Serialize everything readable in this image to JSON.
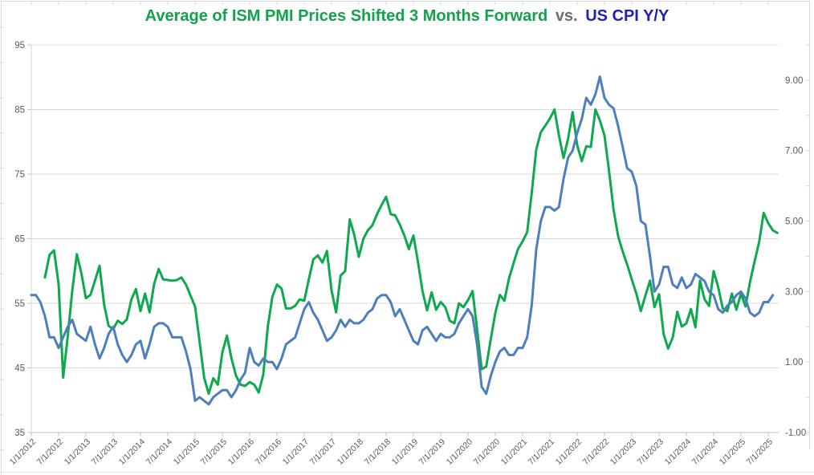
{
  "title": {
    "part1": "Average of ISM PMI Prices Shifted 3 Months Forward",
    "separator": "vs.",
    "part2": "US CPI Y/Y"
  },
  "colors": {
    "title_part1": "#12A24B",
    "title_separator": "#6E6E6E",
    "title_part2": "#1F23AE",
    "series_ism": "#0EA84F",
    "series_cpi": "#4D7EBE",
    "axis_text": "#595959",
    "gridline": "#D9D9D9",
    "tick_line": "#BFBFBF",
    "frame_line": "#D9D9D9"
  },
  "chart_data": {
    "type": "line",
    "title": "Average of ISM PMI Prices Shifted 3 Months Forward vs. US CPI Y/Y",
    "grid": "horizontal-only",
    "legend": "none",
    "x_start": "1/1/2012",
    "x_tick_interval_months": 6,
    "x_tick_labels": [
      "1/1/2012",
      "7/1/2012",
      "1/1/2013",
      "7/1/2013",
      "1/1/2014",
      "7/1/2014",
      "1/1/2015",
      "7/1/2015",
      "1/1/2016",
      "7/1/2016",
      "1/1/2017",
      "7/1/2017",
      "1/1/2018",
      "7/1/2018",
      "1/1/2019",
      "7/1/2019",
      "1/1/2020",
      "7/1/2020",
      "1/1/2021",
      "7/1/2021",
      "1/1/2022",
      "7/1/2022",
      "1/1/2023",
      "7/1/2023",
      "1/1/2024",
      "7/1/2024",
      "1/1/2025",
      "7/1/2025"
    ],
    "left_axis": {
      "labels": [
        "95",
        "85",
        "75",
        "65",
        "55",
        "45",
        "35"
      ],
      "min": 35,
      "max": 95
    },
    "right_axis": {
      "labels": [
        "9.00",
        "7.00",
        "5.00",
        "3.00",
        "1.00",
        "-1.00"
      ],
      "min": -1,
      "max": 10
    },
    "series": [
      {
        "name": "Average of ISM PMI Prices Shifted 3 Months Forward",
        "axis": "left",
        "color_key": "series_ism",
        "start_month_index": 3,
        "start_label": "4/1/2012",
        "values": [
          59.0,
          62.5,
          63.2,
          58.0,
          43.5,
          49.8,
          56.9,
          62.6,
          59.7,
          55.8,
          56.3,
          58.5,
          60.8,
          54.8,
          51.5,
          51.0,
          52.3,
          51.8,
          52.5,
          55.6,
          57.2,
          53.8,
          56.5,
          53.6,
          58.0,
          60.3,
          58.7,
          58.6,
          58.5,
          58.6,
          59.0,
          57.9,
          56.2,
          54.5,
          49.0,
          43.5,
          41.0,
          43.4,
          42.4,
          47.4,
          50.0,
          46.5,
          43.8,
          42.4,
          42.2,
          42.8,
          42.4,
          41.2,
          44.0,
          51.5,
          56.0,
          57.9,
          57.3,
          54.2,
          54.2,
          54.6,
          55.6,
          55.4,
          58.7,
          61.8,
          62.4,
          61.3,
          63.1,
          57.0,
          53.6,
          59.3,
          60.0,
          68.0,
          65.6,
          62.2,
          65.0,
          66.3,
          67.1,
          68.8,
          70.2,
          71.5,
          68.8,
          68.6,
          67.2,
          65.5,
          63.4,
          65.5,
          61.4,
          56.9,
          53.9,
          56.7,
          54.0,
          55.2,
          54.4,
          52.3,
          51.9,
          55.0,
          54.4,
          55.5,
          56.9,
          51.0,
          44.8,
          45.2,
          49.4,
          53.5,
          56.3,
          55.4,
          58.8,
          61.2,
          63.4,
          64.6,
          66.0,
          72.0,
          78.8,
          81.5,
          82.5,
          83.6,
          85.0,
          81.0,
          77.5,
          80.5,
          84.6,
          79.5,
          77.0,
          79.3,
          79.2,
          85.0,
          83.3,
          81.0,
          75.5,
          69.5,
          65.4,
          63.0,
          61.0,
          58.7,
          56.5,
          53.8,
          56.2,
          58.5,
          54.4,
          56.4,
          50.2,
          48.0,
          49.7,
          53.7,
          51.4,
          51.9,
          54.1,
          51.3,
          58.5,
          55.6,
          54.6,
          60.0,
          57.5,
          54.2,
          53.8,
          56.5,
          54.0,
          56.5,
          54.5,
          58.3,
          61.5,
          64.5,
          69.0,
          67.4,
          66.3,
          65.9
        ]
      },
      {
        "name": "US CPI Y/Y",
        "axis": "right",
        "color_key": "series_cpi",
        "start_month_index": 0,
        "start_label": "1/1/2012",
        "values": [
          2.9,
          2.9,
          2.7,
          2.3,
          1.7,
          1.7,
          1.4,
          1.7,
          2.0,
          2.2,
          1.8,
          1.7,
          1.6,
          2.0,
          1.5,
          1.1,
          1.4,
          1.8,
          2.0,
          1.5,
          1.2,
          1.0,
          1.2,
          1.5,
          1.6,
          1.1,
          1.5,
          2.0,
          2.1,
          2.1,
          2.0,
          1.7,
          1.7,
          1.7,
          1.3,
          0.8,
          -0.1,
          0.0,
          -0.1,
          -0.2,
          0.0,
          0.1,
          0.2,
          0.2,
          0.0,
          0.2,
          0.5,
          0.7,
          1.4,
          1.0,
          0.9,
          1.1,
          1.0,
          1.0,
          0.8,
          1.1,
          1.5,
          1.6,
          1.7,
          2.1,
          2.5,
          2.7,
          2.4,
          2.2,
          1.9,
          1.6,
          1.7,
          1.9,
          2.2,
          2.0,
          2.2,
          2.1,
          2.1,
          2.2,
          2.4,
          2.5,
          2.8,
          2.9,
          2.9,
          2.7,
          2.3,
          2.5,
          2.2,
          1.9,
          1.6,
          1.5,
          1.9,
          2.0,
          1.8,
          1.6,
          1.8,
          1.7,
          1.7,
          1.8,
          2.1,
          2.3,
          2.5,
          2.3,
          1.5,
          0.3,
          0.1,
          0.6,
          1.0,
          1.3,
          1.4,
          1.2,
          1.2,
          1.4,
          1.4,
          1.7,
          2.6,
          4.2,
          5.0,
          5.4,
          5.4,
          5.3,
          5.4,
          6.2,
          6.8,
          7.0,
          7.5,
          7.9,
          8.5,
          8.3,
          8.6,
          9.1,
          8.5,
          8.3,
          8.2,
          7.7,
          7.1,
          6.5,
          6.4,
          6.0,
          5.0,
          4.9,
          4.0,
          3.0,
          3.2,
          3.7,
          3.7,
          3.2,
          3.1,
          3.4,
          3.1,
          3.2,
          3.5,
          3.4,
          3.3,
          3.0,
          2.9,
          2.5,
          2.4,
          2.6,
          2.7,
          2.9,
          3.0,
          2.8,
          2.4,
          2.3,
          2.4,
          2.7,
          2.7,
          2.9
        ]
      }
    ]
  }
}
